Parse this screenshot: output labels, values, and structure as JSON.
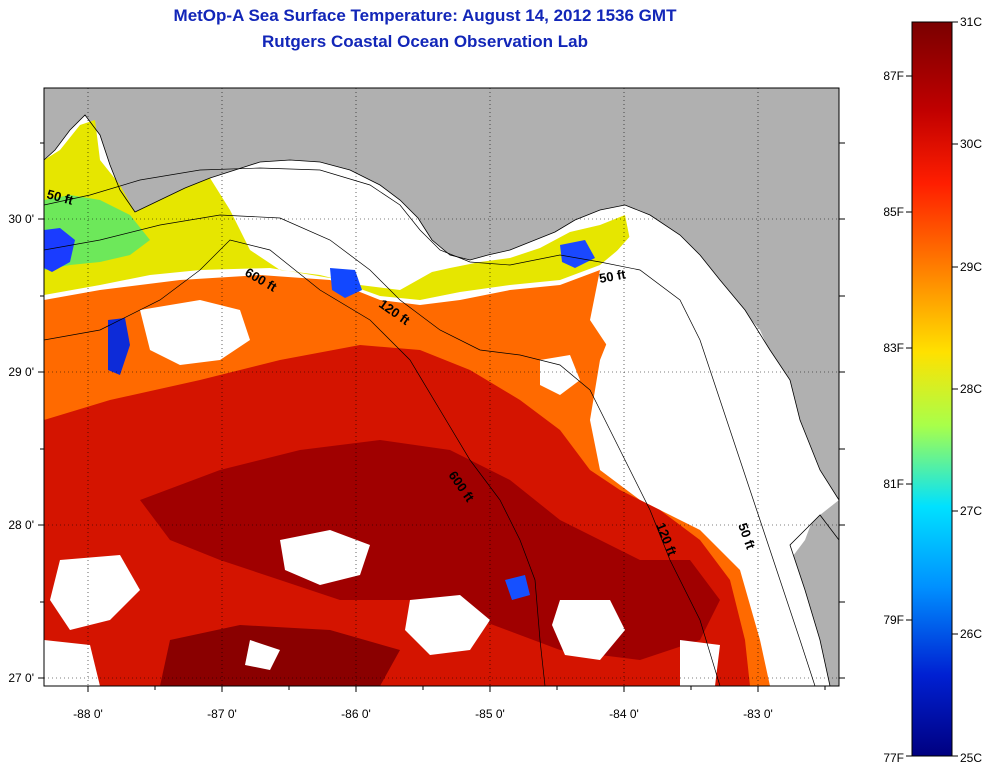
{
  "header": {
    "title": "MetOp-A Sea Surface Temperature:  August 14, 2012 1536 GMT",
    "subtitle": "Rutgers Coastal Ocean Observation Lab"
  },
  "map": {
    "lon_ticks": [
      "-88 0'",
      "-87 0'",
      "-86 0'",
      "-85 0'",
      "-84 0'",
      "-83 0'"
    ],
    "lat_ticks": [
      "30 0'",
      "29 0'",
      "28 0'",
      "27 0'"
    ],
    "contour_labels": [
      "50 ft",
      "600 ft",
      "120 ft",
      "50 ft",
      "600 ft",
      "120 ft",
      "50 ft"
    ]
  },
  "colorbar": {
    "celsius": [
      "31C",
      "30C",
      "29C",
      "28C",
      "27C",
      "26C",
      "25C"
    ],
    "fahrenheit": [
      "87F",
      "85F",
      "83F",
      "81F",
      "79F",
      "77F"
    ],
    "colors": [
      "#7a0000",
      "#c80000",
      "#ff2a00",
      "#ff8c00",
      "#ffe600",
      "#9bff5a",
      "#00e6ff",
      "#0080ff",
      "#0010c8",
      "#00008c"
    ]
  }
}
